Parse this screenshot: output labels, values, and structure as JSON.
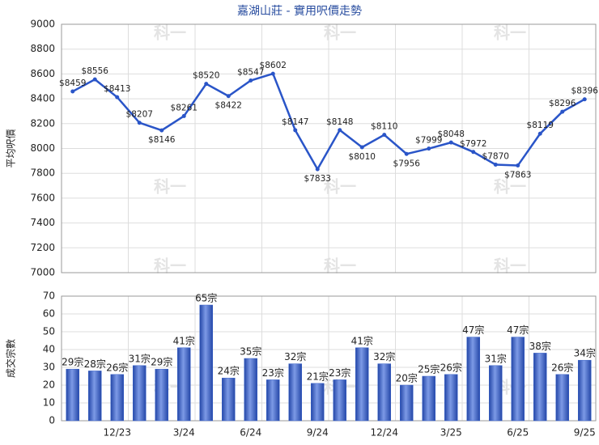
{
  "title": "嘉湖山莊 - 實用呎價走勢",
  "watermark": "科一",
  "chart_data": [
    {
      "type": "line",
      "ylabel": "平均呎價",
      "color": "#2a55c8",
      "values": [
        8459,
        8556,
        8413,
        8207,
        8146,
        8261,
        8520,
        8422,
        8547,
        8602,
        8147,
        7833,
        8148,
        8010,
        8110,
        7956,
        7999,
        8048,
        7972,
        7870,
        7863,
        8119,
        8296,
        8396
      ],
      "value_labels": [
        "$8459",
        "$8556",
        "$8413",
        "$8207",
        "$8146",
        "$8261",
        "$8520",
        "$8422",
        "$8547",
        "$8602",
        "$8147",
        "$7833",
        "$8148",
        "$8010",
        "$8110",
        "$7956",
        "$7999",
        "$8048",
        "$7972",
        "$7870",
        "$7863",
        "$8119",
        "$8296",
        "$8396"
      ],
      "ylim": [
        7000,
        9000
      ],
      "yticks": [
        7000,
        7200,
        7400,
        7600,
        7800,
        8000,
        8200,
        8400,
        8600,
        8800,
        9000
      ],
      "grid": true
    },
    {
      "type": "bar",
      "ylabel": "成交宗數",
      "color": "#3a63c8",
      "categories": [
        null,
        null,
        "12/23",
        null,
        null,
        "3/24",
        null,
        null,
        "6/24",
        null,
        null,
        "9/24",
        null,
        null,
        "12/24",
        null,
        null,
        "3/25",
        null,
        null,
        "6/25",
        null,
        null,
        "9/25"
      ],
      "values": [
        29,
        28,
        26,
        31,
        29,
        41,
        65,
        24,
        35,
        23,
        32,
        21,
        23,
        41,
        32,
        20,
        25,
        26,
        47,
        31,
        47,
        38,
        26,
        34
      ],
      "value_labels": [
        "29宗",
        "28宗",
        "26宗",
        "31宗",
        "29宗",
        "41宗",
        "65宗",
        "24宗",
        "35宗",
        "23宗",
        "32宗",
        "21宗",
        "23宗",
        "41宗",
        "32宗",
        "20宗",
        "25宗",
        "26宗",
        "47宗",
        "31宗",
        "47宗",
        "38宗",
        "26宗",
        "34宗"
      ],
      "ylim": [
        0,
        70
      ],
      "yticks": [
        0,
        10,
        20,
        30,
        40,
        50,
        60,
        70
      ],
      "grid": true
    }
  ]
}
